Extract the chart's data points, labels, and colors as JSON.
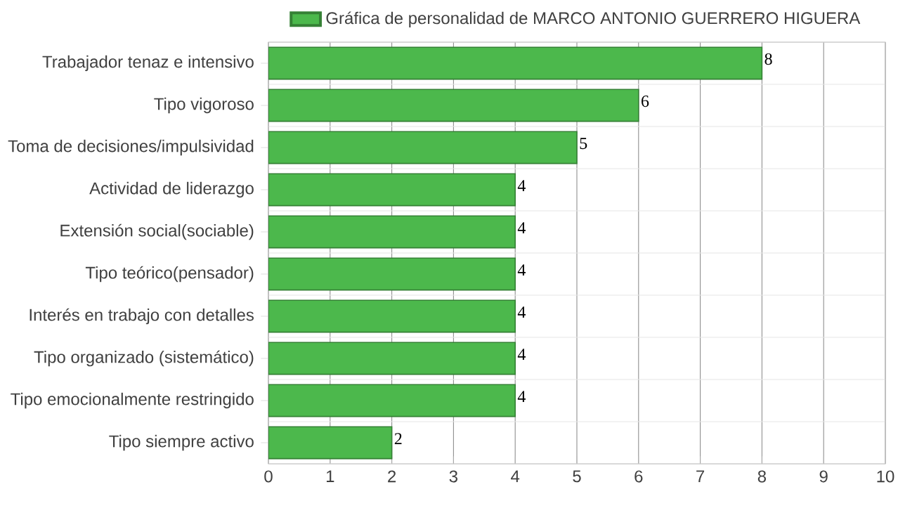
{
  "chart_data": {
    "type": "bar",
    "orientation": "horizontal",
    "categories": [
      "Trabajador tenaz e intensivo",
      "Tipo vigoroso",
      "Toma de decisiones/impulsividad",
      "Actividad de liderazgo",
      "Extensión social(sociable)",
      "Tipo teórico(pensador)",
      "Interés en trabajo con detalles",
      "Tipo organizado (sistemático)",
      "Tipo emocionalmente restringido",
      "Tipo siempre activo"
    ],
    "series": [
      {
        "name": "Gráfica de personalidad de MARCO ANTONIO GUERRERO HIGUERA",
        "color": "#4cb84c",
        "values": [
          8,
          6,
          5,
          4,
          4,
          4,
          4,
          4,
          4,
          2
        ]
      }
    ],
    "xlim": [
      0,
      10
    ],
    "xticks": [
      0,
      1,
      2,
      3,
      4,
      5,
      6,
      7,
      8,
      9,
      10
    ],
    "grid": "x",
    "legend": "top",
    "data_labels": true
  }
}
